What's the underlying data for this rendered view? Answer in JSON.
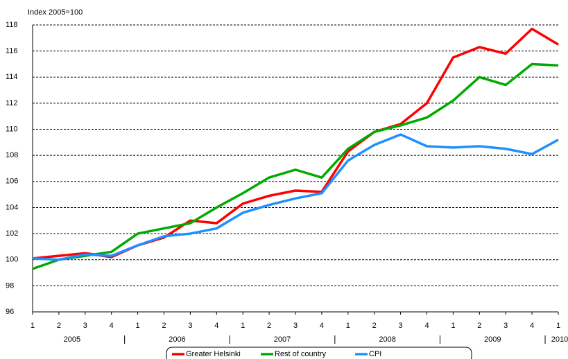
{
  "chart_data": {
    "type": "line",
    "y_axis_label": "Index 2005=100",
    "categories": [
      "1",
      "2",
      "3",
      "4",
      "1",
      "2",
      "3",
      "4",
      "1",
      "2",
      "3",
      "4",
      "1",
      "2",
      "3",
      "4",
      "1",
      "2",
      "3",
      "4",
      "1"
    ],
    "years": [
      "2005",
      "2006",
      "2007",
      "2008",
      "2009",
      "2010"
    ],
    "series": [
      {
        "name": "Greater Helsinki",
        "color": "#ff0000",
        "values": [
          100.1,
          100.3,
          100.5,
          100.2,
          101.1,
          101.7,
          103.0,
          102.8,
          104.3,
          104.9,
          105.3,
          105.2,
          108.3,
          109.8,
          110.4,
          112.0,
          115.5,
          116.3,
          115.8,
          117.7,
          116.5
        ]
      },
      {
        "name": "Rest of country",
        "color": "#00aa00",
        "values": [
          99.3,
          100.0,
          100.3,
          100.6,
          102.0,
          102.4,
          102.8,
          104.0,
          105.1,
          106.3,
          106.9,
          106.3,
          108.5,
          109.8,
          110.3,
          110.9,
          112.2,
          114.0,
          113.4,
          115.0,
          114.9
        ]
      },
      {
        "name": "CPI",
        "color": "#1e90ff",
        "values": [
          100.1,
          100.0,
          100.4,
          100.3,
          101.1,
          101.8,
          102.0,
          102.4,
          103.6,
          104.2,
          104.7,
          105.1,
          107.6,
          108.8,
          109.6,
          108.7,
          108.6,
          108.7,
          108.5,
          108.1,
          109.2
        ]
      }
    ],
    "ylim": [
      96,
      118
    ],
    "yticks": [
      96,
      98,
      100,
      102,
      104,
      106,
      108,
      110,
      112,
      114,
      116,
      118
    ],
    "grid": true
  }
}
